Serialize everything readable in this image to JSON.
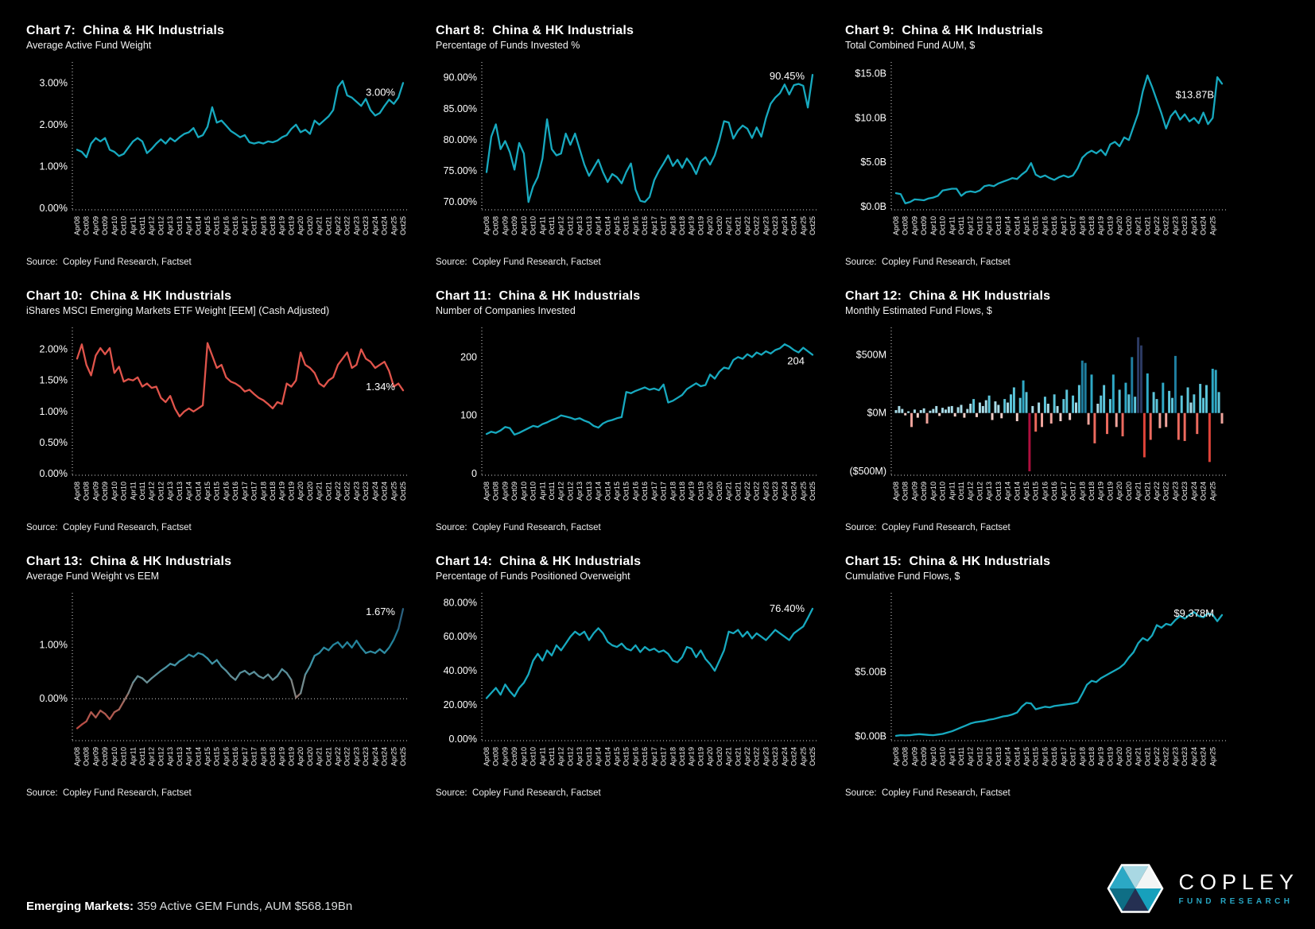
{
  "footer": {
    "bold": "Emerging Markets:",
    "text": " 359 Active GEM Funds, AUM $568.19Bn"
  },
  "logo": {
    "title": "COPLEY",
    "subtitle": "FUND RESEARCH"
  },
  "x_labels": [
    "Apr08",
    "Oct08",
    "Apr09",
    "Oct09",
    "Apr10",
    "Oct10",
    "Apr11",
    "Oct11",
    "Apr12",
    "Oct12",
    "Apr13",
    "Oct13",
    "Apr14",
    "Oct14",
    "Apr15",
    "Oct15",
    "Apr16",
    "Oct16",
    "Apr17",
    "Oct17",
    "Apr18",
    "Oct18",
    "Apr19",
    "Oct19",
    "Apr20",
    "Oct20",
    "Apr21",
    "Oct21",
    "Apr22",
    "Oct22",
    "Apr23",
    "Oct23",
    "Apr24",
    "Oct24",
    "Apr25",
    "Oct25"
  ],
  "x_labels_right": [
    "Apr08",
    "Oct08",
    "Apr09",
    "Oct09",
    "Apr10",
    "Oct10",
    "Apr11",
    "Oct11",
    "Apr12",
    "Oct12",
    "Apr13",
    "Oct13",
    "Apr14",
    "Oct14",
    "Apr15",
    "Oct15",
    "Apr16",
    "Oct16",
    "Apr17",
    "Oct17",
    "Apr18",
    "Oct18",
    "Apr19",
    "Oct19",
    "Apr20",
    "Oct20",
    "Apr21",
    "Oct21",
    "Apr22",
    "Oct22",
    "Apr23",
    "Oct23",
    "Apr24",
    "Oct24",
    "Apr25"
  ],
  "chart_data": [
    {
      "id": "chart-7",
      "title": "Chart 7:  China & HK Industrials",
      "subtitle": "Average Active Fund Weight",
      "source": "Source:  Copley Fund Research, Factset",
      "type": "line",
      "color": "#17a9bf",
      "end_label": "3.00%",
      "ylim": [
        0,
        3.35
      ],
      "yticks": [
        {
          "v": 0,
          "label": "0.00%"
        },
        {
          "v": 1,
          "label": "1.00%"
        },
        {
          "v": 2,
          "label": "2.00%"
        },
        {
          "v": 3,
          "label": "3.00%"
        }
      ],
      "xlabels": "x_labels",
      "values": [
        1.4,
        1.35,
        1.22,
        1.55,
        1.68,
        1.6,
        1.68,
        1.4,
        1.35,
        1.25,
        1.3,
        1.45,
        1.6,
        1.68,
        1.6,
        1.32,
        1.42,
        1.55,
        1.65,
        1.55,
        1.68,
        1.6,
        1.7,
        1.78,
        1.82,
        1.92,
        1.7,
        1.75,
        1.95,
        2.42,
        2.05,
        2.1,
        1.98,
        1.85,
        1.78,
        1.7,
        1.75,
        1.58,
        1.55,
        1.58,
        1.55,
        1.6,
        1.58,
        1.62,
        1.7,
        1.75,
        1.9,
        2.0,
        1.82,
        1.88,
        1.78,
        2.1,
        2.0,
        2.1,
        2.2,
        2.35,
        2.9,
        3.05,
        2.7,
        2.65,
        2.55,
        2.45,
        2.62,
        2.35,
        2.22,
        2.28,
        2.45,
        2.6,
        2.5,
        2.65,
        3.0
      ]
    },
    {
      "id": "chart-8",
      "title": "Chart 8:  China & HK Industrials",
      "subtitle": "Percentage of Funds Invested %",
      "source": "Source:  Copley Fund Research, Factset",
      "type": "line",
      "color": "#17a9bf",
      "end_label": "90.45%",
      "ylim": [
        69,
        91.5
      ],
      "yticks": [
        {
          "v": 70,
          "label": "70.00%"
        },
        {
          "v": 75,
          "label": "75.00%"
        },
        {
          "v": 80,
          "label": "80.00%"
        },
        {
          "v": 85,
          "label": "85.00%"
        },
        {
          "v": 90,
          "label": "90.00%"
        }
      ],
      "xlabels": "x_labels",
      "values": [
        74.8,
        80.5,
        82.5,
        78.5,
        79.8,
        78.0,
        75.2,
        79.5,
        77.8,
        70.0,
        72.5,
        74.0,
        77.0,
        83.3,
        78.5,
        77.5,
        77.8,
        81.0,
        79.2,
        81.0,
        78.5,
        76.0,
        74.2,
        75.5,
        76.8,
        74.8,
        73.2,
        74.5,
        74.0,
        73.0,
        74.8,
        76.2,
        72.0,
        70.2,
        70.0,
        70.8,
        73.5,
        75.0,
        76.2,
        77.5,
        75.8,
        76.8,
        75.5,
        77.0,
        76.0,
        74.5,
        76.5,
        77.2,
        76.0,
        77.5,
        80.0,
        83.0,
        82.8,
        80.2,
        81.5,
        82.3,
        81.8,
        80.3,
        82.0,
        80.5,
        83.5,
        85.8,
        86.8,
        87.5,
        88.9,
        87.3,
        88.8,
        89.0,
        88.7,
        85.2,
        90.45
      ]
    },
    {
      "id": "chart-9",
      "title": "Chart 9:  China & HK Industrials",
      "subtitle": "Total Combined Fund AUM, $",
      "source": "Source:  Copley Fund Research, Factset",
      "type": "line",
      "color": "#17a9bf",
      "end_label": "$13.87B",
      "ylim": [
        -0.2,
        15.6
      ],
      "yticks": [
        {
          "v": 0,
          "label": "$0.0B"
        },
        {
          "v": 5,
          "label": "$5.0B"
        },
        {
          "v": 10,
          "label": "$10.0B"
        },
        {
          "v": 15,
          "label": "$15.0B"
        }
      ],
      "xlabels": "x_labels_right",
      "values": [
        1.5,
        1.4,
        0.35,
        0.5,
        0.8,
        0.75,
        0.7,
        0.9,
        1.0,
        1.2,
        1.8,
        1.9,
        2.0,
        2.0,
        1.2,
        1.6,
        1.7,
        1.6,
        1.8,
        2.3,
        2.4,
        2.3,
        2.6,
        2.8,
        3.0,
        3.2,
        3.1,
        3.6,
        4.0,
        4.9,
        3.6,
        3.3,
        3.5,
        3.2,
        3.0,
        3.3,
        3.5,
        3.3,
        3.5,
        4.3,
        5.5,
        6.0,
        6.3,
        6.0,
        6.4,
        5.8,
        7.0,
        7.3,
        6.8,
        7.8,
        7.5,
        9.0,
        10.5,
        13.0,
        14.8,
        13.5,
        12.0,
        10.5,
        8.8,
        10.2,
        10.8,
        9.8,
        10.4,
        9.6,
        10.0,
        9.4,
        10.6,
        9.3,
        10.0,
        14.6,
        13.87
      ]
    },
    {
      "id": "chart-10",
      "title": "Chart 10:  China & HK Industrials",
      "subtitle": "iShares MSCI Emerging Markets ETF Weight [EEM] (Cash Adjusted)",
      "source": "Source:  Copley Fund Research, Factset",
      "type": "line",
      "color": "#e0544b",
      "end_label": "1.34%",
      "ylim": [
        0,
        2.25
      ],
      "yticks": [
        {
          "v": 0,
          "label": "0.00%"
        },
        {
          "v": 0.5,
          "label": "0.50%"
        },
        {
          "v": 1,
          "label": "1.00%"
        },
        {
          "v": 1.5,
          "label": "1.50%"
        },
        {
          "v": 2,
          "label": "2.00%"
        }
      ],
      "xlabels": "x_labels",
      "values": [
        1.85,
        2.08,
        1.75,
        1.58,
        1.9,
        2.02,
        1.92,
        2.02,
        1.62,
        1.72,
        1.48,
        1.52,
        1.5,
        1.55,
        1.4,
        1.45,
        1.38,
        1.4,
        1.22,
        1.15,
        1.25,
        1.05,
        0.92,
        1.0,
        1.05,
        1.0,
        1.05,
        1.1,
        2.1,
        1.9,
        1.7,
        1.75,
        1.55,
        1.48,
        1.45,
        1.4,
        1.32,
        1.35,
        1.28,
        1.22,
        1.18,
        1.12,
        1.05,
        1.15,
        1.12,
        1.45,
        1.4,
        1.5,
        1.95,
        1.75,
        1.7,
        1.62,
        1.45,
        1.4,
        1.5,
        1.55,
        1.75,
        1.85,
        1.95,
        1.7,
        1.75,
        2.0,
        1.85,
        1.8,
        1.7,
        1.75,
        1.8,
        1.65,
        1.4,
        1.45,
        1.34
      ]
    },
    {
      "id": "chart-11",
      "title": "Chart 11:  China & HK Industrials",
      "subtitle": "Number of Companies Invested",
      "source": "Source:  Copley Fund Research, Factset",
      "type": "line",
      "color": "#17a9bf",
      "end_label": "204",
      "ylim": [
        0,
        240
      ],
      "yticks": [
        {
          "v": 0,
          "label": "0"
        },
        {
          "v": 100,
          "label": "100"
        },
        {
          "v": 200,
          "label": "200"
        }
      ],
      "xlabels": "x_labels",
      "values": [
        68,
        72,
        70,
        74,
        80,
        78,
        67,
        70,
        74,
        78,
        82,
        80,
        85,
        88,
        92,
        95,
        100,
        98,
        96,
        93,
        95,
        91,
        88,
        82,
        79,
        86,
        90,
        92,
        95,
        97,
        140,
        138,
        142,
        145,
        148,
        144,
        146,
        143,
        153,
        122,
        125,
        130,
        135,
        145,
        150,
        155,
        150,
        152,
        170,
        163,
        175,
        182,
        180,
        195,
        200,
        197,
        205,
        200,
        208,
        204,
        210,
        206,
        212,
        215,
        222,
        218,
        212,
        208,
        216,
        210,
        204
      ]
    },
    {
      "id": "chart-12",
      "title": "Chart 12:  China & HK Industrials",
      "subtitle": "Monthly Estimated Fund Flows, $",
      "source": "Source:  Copley Fund Research, Factset",
      "type": "bar",
      "color": "#2fa9c6",
      "end_label": "",
      "ylim": [
        -520,
        680
      ],
      "yticks": [
        {
          "v": -500,
          "label": "($500M)"
        },
        {
          "v": 0,
          "label": "$0M"
        },
        {
          "v": 500,
          "label": "$500M"
        }
      ],
      "xlabels": "x_labels_right",
      "values": [
        25,
        60,
        35,
        -20,
        15,
        -120,
        30,
        -40,
        25,
        40,
        -90,
        20,
        35,
        60,
        -25,
        45,
        30,
        55,
        60,
        -30,
        50,
        70,
        -40,
        35,
        80,
        120,
        -35,
        90,
        60,
        110,
        150,
        -60,
        100,
        70,
        -45,
        120,
        90,
        160,
        220,
        -70,
        130,
        280,
        180,
        -500,
        60,
        -160,
        90,
        -120,
        140,
        80,
        -90,
        160,
        60,
        -70,
        120,
        200,
        -60,
        150,
        90,
        240,
        450,
        430,
        -100,
        330,
        -260,
        80,
        150,
        240,
        -180,
        120,
        330,
        -120,
        200,
        -200,
        260,
        160,
        480,
        140,
        650,
        580,
        -380,
        340,
        -230,
        180,
        120,
        -130,
        260,
        -120,
        190,
        130,
        490,
        -230,
        150,
        -240,
        220,
        90,
        160,
        -180,
        250,
        130,
        240,
        -420,
        380,
        370,
        180,
        -90
      ]
    },
    {
      "id": "chart-13",
      "title": "Chart 13:  China & HK Industrials",
      "subtitle": "Average Fund Weight vs EEM",
      "source": "Source:  Copley Fund Research, Factset",
      "type": "line_gradient",
      "color": "#2e8fa3",
      "end_label": "1.67%",
      "zero_line": true,
      "ylim": [
        -0.75,
        1.85
      ],
      "yticks": [
        {
          "v": 0,
          "label": "0.00%"
        },
        {
          "v": 1,
          "label": "1.00%"
        }
      ],
      "xlabels": "x_labels",
      "values": [
        -0.55,
        -0.48,
        -0.42,
        -0.25,
        -0.35,
        -0.22,
        -0.28,
        -0.38,
        -0.25,
        -0.2,
        -0.05,
        0.1,
        0.3,
        0.42,
        0.38,
        0.3,
        0.38,
        0.45,
        0.52,
        0.58,
        0.65,
        0.62,
        0.7,
        0.75,
        0.82,
        0.78,
        0.85,
        0.82,
        0.75,
        0.65,
        0.72,
        0.6,
        0.52,
        0.42,
        0.35,
        0.48,
        0.52,
        0.45,
        0.5,
        0.42,
        0.38,
        0.45,
        0.35,
        0.42,
        0.55,
        0.48,
        0.35,
        0.02,
        0.1,
        0.45,
        0.6,
        0.8,
        0.85,
        0.95,
        0.9,
        1.0,
        1.05,
        0.95,
        1.05,
        0.95,
        1.08,
        0.95,
        0.85,
        0.88,
        0.85,
        0.92,
        0.85,
        0.95,
        1.1,
        1.3,
        1.67
      ]
    },
    {
      "id": "chart-14",
      "title": "Chart 14:  China & HK Industrials",
      "subtitle": "Percentage of Funds Positioned Overweight",
      "source": "Source:  Copley Fund Research, Factset",
      "type": "line",
      "color": "#17a9bf",
      "end_label": "76.40%",
      "ylim": [
        0,
        82
      ],
      "yticks": [
        {
          "v": 0,
          "label": "0.00%"
        },
        {
          "v": 20,
          "label": "20.00%"
        },
        {
          "v": 40,
          "label": "40.00%"
        },
        {
          "v": 60,
          "label": "60.00%"
        },
        {
          "v": 80,
          "label": "80.00%"
        }
      ],
      "xlabels": "x_labels",
      "values": [
        24,
        27,
        30,
        26,
        32,
        28,
        25,
        30,
        33,
        38,
        46,
        50,
        46,
        52,
        49,
        55,
        52,
        56,
        60,
        63,
        61,
        63,
        58,
        62,
        65,
        62,
        57,
        55,
        54,
        56,
        53,
        52,
        55,
        51,
        54,
        52,
        53,
        51,
        52,
        50,
        46,
        45,
        48,
        54,
        53,
        48,
        52,
        47,
        44,
        40,
        46,
        52,
        63,
        62,
        64,
        60,
        63,
        59,
        62,
        60,
        58,
        61,
        64,
        62,
        60,
        58,
        62,
        64,
        66,
        71,
        76.4
      ]
    },
    {
      "id": "chart-15",
      "title": "Chart 15:  China & HK Industrials",
      "subtitle": "Cumulative Fund Flows, $",
      "source": "Source:  Copley Fund Research, Factset",
      "type": "line",
      "color": "#17a9bf",
      "end_label": "$9,378M",
      "ylim": [
        -0.2,
        10.6
      ],
      "yticks": [
        {
          "v": 0,
          "label": "$0.00B"
        },
        {
          "v": 5,
          "label": "$5.00B"
        }
      ],
      "xlabels": "x_labels_right",
      "values": [
        0.05,
        0.1,
        0.08,
        0.1,
        0.15,
        0.18,
        0.15,
        0.12,
        0.1,
        0.15,
        0.2,
        0.3,
        0.4,
        0.55,
        0.7,
        0.85,
        1.0,
        1.1,
        1.15,
        1.2,
        1.3,
        1.35,
        1.45,
        1.55,
        1.6,
        1.7,
        1.85,
        2.3,
        2.6,
        2.55,
        2.1,
        2.2,
        2.3,
        2.25,
        2.35,
        2.4,
        2.45,
        2.5,
        2.55,
        2.65,
        3.3,
        4.0,
        4.3,
        4.2,
        4.5,
        4.7,
        4.9,
        5.1,
        5.3,
        5.6,
        6.1,
        6.5,
        7.2,
        7.6,
        7.4,
        7.8,
        8.6,
        8.4,
        8.7,
        8.6,
        9.0,
        9.3,
        9.1,
        9.4,
        9.6,
        9.3,
        9.2,
        9.5,
        9.4,
        8.9,
        9.378
      ]
    }
  ]
}
